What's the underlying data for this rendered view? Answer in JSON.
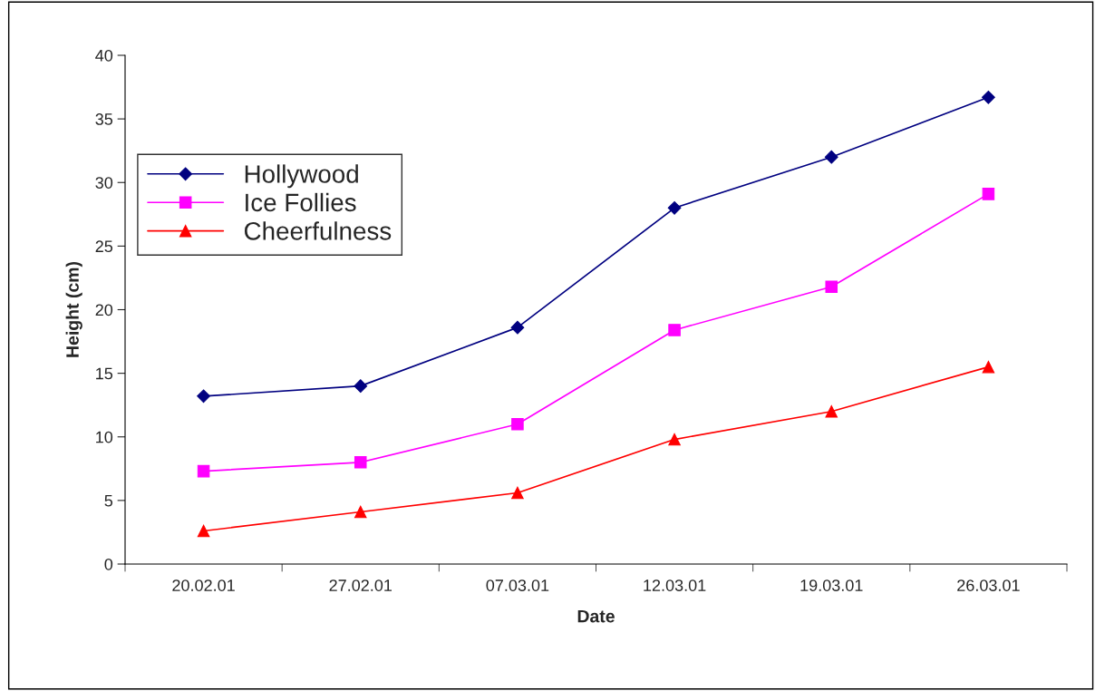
{
  "chart_data": {
    "type": "line",
    "xlabel": "Date",
    "ylabel": "Height (cm)",
    "categories": [
      "20.02.01",
      "27.02.01",
      "07.03.01",
      "12.03.01",
      "19.03.01",
      "26.03.01"
    ],
    "series": [
      {
        "name": "Hollywood",
        "color": "#000080",
        "marker": "diamond",
        "values": [
          13.2,
          14.0,
          18.6,
          28.0,
          32.0,
          36.7
        ]
      },
      {
        "name": "Ice Follies",
        "color": "#ff00ff",
        "marker": "square",
        "values": [
          7.3,
          8.0,
          11.0,
          18.4,
          21.8,
          29.1
        ]
      },
      {
        "name": "Cheerfulness",
        "color": "#ff0000",
        "marker": "triangle",
        "values": [
          2.6,
          4.1,
          5.6,
          9.8,
          12.0,
          15.5
        ]
      }
    ],
    "ylim": [
      0,
      40
    ],
    "yticks": [
      0,
      5,
      10,
      15,
      20,
      25,
      30,
      35,
      40
    ],
    "grid": false,
    "legend": "top left",
    "line_style": "solid"
  }
}
